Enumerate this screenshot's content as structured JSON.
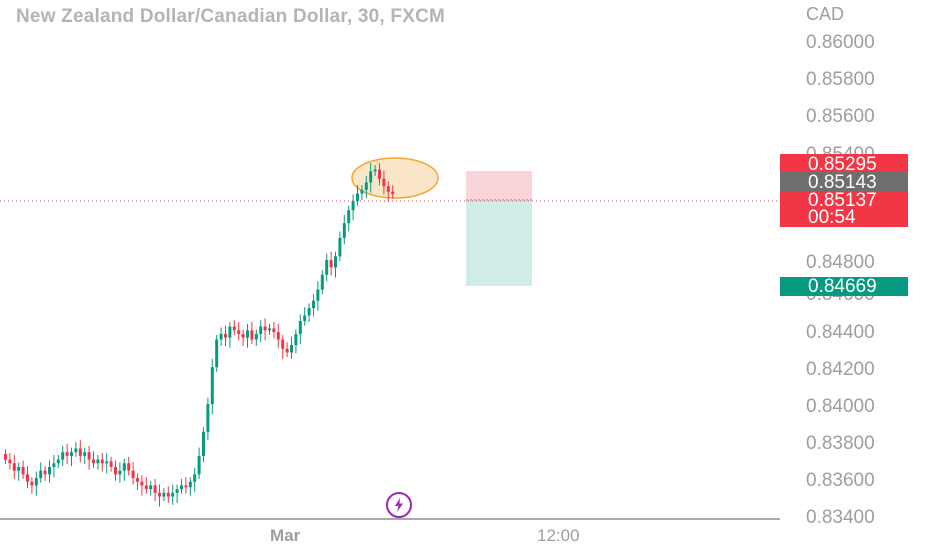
{
  "header": {
    "title": "New Zealand Dollar/Canadian Dollar, 30, FXCM",
    "currency": "CAD"
  },
  "colors": {
    "up": "#089981",
    "down": "#f23645",
    "stop_zone": "#fad4d8",
    "target_zone": "#d0ece7",
    "highlight_fill": "#fce2bf",
    "highlight_stroke": "#f7a531"
  },
  "icons": {
    "bottom": "flash-icon"
  },
  "price_labels": {
    "stop": "0.85295",
    "entry": "0.85143",
    "current_price": "0.85137",
    "countdown": "00:54",
    "target": "0.84669"
  },
  "chart_data": {
    "type": "candlestick",
    "title": "New Zealand Dollar/Canadian Dollar, 30, FXCM",
    "ylabel": "CAD",
    "ylim": [
      0.834,
      0.861
    ],
    "y_ticks": [
      "0.86000",
      "0.85800",
      "0.85600",
      "0.85400",
      "0.85143",
      "0.84800",
      "0.84600",
      "0.84400",
      "0.84200",
      "0.84000",
      "0.83800",
      "0.83600",
      "0.83400"
    ],
    "x_ticks": [
      {
        "label": "Mar",
        "bold": true
      },
      {
        "label": "12:00",
        "bold": false
      }
    ],
    "grid": false,
    "close_prices": [
      0.837,
      0.8368,
      0.8364,
      0.8366,
      0.8362,
      0.8358,
      0.8356,
      0.836,
      0.8364,
      0.8362,
      0.8366,
      0.8368,
      0.837,
      0.8374,
      0.8372,
      0.8374,
      0.8376,
      0.8372,
      0.8374,
      0.837,
      0.8368,
      0.837,
      0.8368,
      0.8369,
      0.8366,
      0.8362,
      0.8364,
      0.8368,
      0.8364,
      0.836,
      0.8358,
      0.8356,
      0.8354,
      0.8356,
      0.8352,
      0.835,
      0.8352,
      0.835,
      0.8352,
      0.8354,
      0.8356,
      0.8355,
      0.8358,
      0.8362,
      0.8372,
      0.8385,
      0.84,
      0.842,
      0.8435,
      0.8438,
      0.8436,
      0.8442,
      0.844,
      0.8438,
      0.8436,
      0.844,
      0.8435,
      0.8438,
      0.8442,
      0.844,
      0.8441,
      0.8439,
      0.8435,
      0.843,
      0.8428,
      0.8432,
      0.8438,
      0.8445,
      0.8448,
      0.8452,
      0.8456,
      0.8462,
      0.847,
      0.8478,
      0.8474,
      0.848,
      0.849,
      0.8498,
      0.8505,
      0.851,
      0.8514,
      0.8516,
      0.852,
      0.8526,
      0.8527,
      0.8522,
      0.8518,
      0.8515,
      0.85137
    ],
    "annotations": {
      "ellipse_center": [
        0.8525
      ],
      "position": {
        "type": "short",
        "entry": 0.85143,
        "stop": 0.85295,
        "target": 0.84669
      },
      "current_price": 0.85137
    }
  }
}
